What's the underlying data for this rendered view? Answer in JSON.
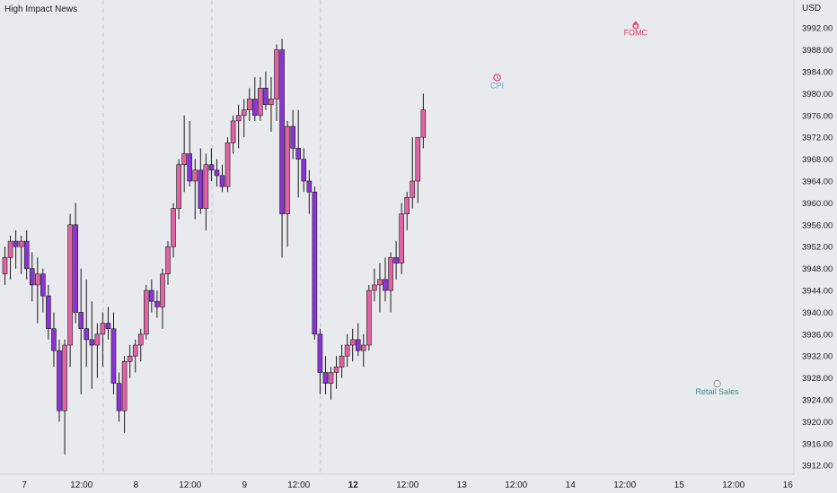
{
  "header": {
    "title": "High Impact News",
    "currency": "USD"
  },
  "colors": {
    "bg": "#e8eaed",
    "up": "#e263a5",
    "down": "#8a33d6",
    "wick": "#1a1a1a",
    "grid": "#c5c7cc"
  },
  "chart_data": {
    "type": "candlestick",
    "ylim": [
      3910,
      3996
    ],
    "y_ticks": [
      "3992.00",
      "3988.00",
      "3984.00",
      "3980.00",
      "3976.00",
      "3972.00",
      "3968.00",
      "3964.00",
      "3960.00",
      "3956.00",
      "3952.00",
      "3948.00",
      "3944.00",
      "3940.00",
      "3936.00",
      "3932.00",
      "3928.00",
      "3924.00",
      "3920.00",
      "3916.00",
      "3912.00"
    ],
    "x_labels": [
      {
        "slot": 4,
        "text": "7",
        "bold": false
      },
      {
        "slot": 14.5,
        "text": "12:00",
        "bold": false
      },
      {
        "slot": 24.5,
        "text": "8",
        "bold": false
      },
      {
        "slot": 34.5,
        "text": "12:00",
        "bold": false
      },
      {
        "slot": 44.5,
        "text": "9",
        "bold": false
      },
      {
        "slot": 54.5,
        "text": "12:00",
        "bold": false
      },
      {
        "slot": 64.5,
        "text": "12",
        "bold": true
      },
      {
        "slot": 74.5,
        "text": "12:00",
        "bold": false
      },
      {
        "slot": 84.5,
        "text": "13",
        "bold": false
      },
      {
        "slot": 94.5,
        "text": "12:00",
        "bold": false
      },
      {
        "slot": 104.5,
        "text": "14",
        "bold": false
      },
      {
        "slot": 114.5,
        "text": "12:00",
        "bold": false
      },
      {
        "slot": 124.5,
        "text": "15",
        "bold": false
      },
      {
        "slot": 134.5,
        "text": "12:00",
        "bold": false
      },
      {
        "slot": 144.5,
        "text": "16",
        "bold": false
      }
    ],
    "session_breaks": [
      18.5,
      38.5,
      58.5
    ],
    "candles": [
      [
        3947,
        3952,
        3945,
        3950
      ],
      [
        3950,
        3954,
        3946,
        3953
      ],
      [
        3953,
        3955,
        3948,
        3952
      ],
      [
        3952,
        3954,
        3947,
        3953
      ],
      [
        3953,
        3955,
        3946,
        3948
      ],
      [
        3948,
        3951,
        3942,
        3945
      ],
      [
        3945,
        3950,
        3938,
        3947
      ],
      [
        3947,
        3948,
        3940,
        3943
      ],
      [
        3943,
        3945,
        3935,
        3937
      ],
      [
        3937,
        3940,
        3930,
        3933
      ],
      [
        3933,
        3935,
        3920,
        3922
      ],
      [
        3922,
        3935,
        3914,
        3934
      ],
      [
        3934,
        3958,
        3930,
        3956
      ],
      [
        3956,
        3960,
        3938,
        3940
      ],
      [
        3940,
        3948,
        3925,
        3937
      ],
      [
        3937,
        3946,
        3930,
        3935
      ],
      [
        3935,
        3942,
        3926,
        3934
      ],
      [
        3934,
        3938,
        3928,
        3936
      ],
      [
        3936,
        3940,
        3930,
        3938
      ],
      [
        3938,
        3941,
        3935,
        3937
      ],
      [
        3937,
        3940,
        3925,
        3927
      ],
      [
        3927,
        3929,
        3920,
        3922
      ],
      [
        3922,
        3932,
        3918,
        3931
      ],
      [
        3931,
        3934,
        3928,
        3932
      ],
      [
        3932,
        3935,
        3929,
        3934
      ],
      [
        3934,
        3937,
        3931,
        3936
      ],
      [
        3936,
        3945,
        3935,
        3944
      ],
      [
        3944,
        3946,
        3940,
        3942
      ],
      [
        3942,
        3944,
        3939,
        3941
      ],
      [
        3941,
        3948,
        3937,
        3947
      ],
      [
        3947,
        3953,
        3945,
        3952
      ],
      [
        3952,
        3960,
        3950,
        3959
      ],
      [
        3959,
        3968,
        3957,
        3967
      ],
      [
        3967,
        3976,
        3962,
        3969
      ],
      [
        3969,
        3975,
        3963,
        3964
      ],
      [
        3964,
        3968,
        3957,
        3966
      ],
      [
        3966,
        3970,
        3958,
        3959
      ],
      [
        3959,
        3969,
        3955,
        3967
      ],
      [
        3967,
        3970,
        3964,
        3966
      ],
      [
        3966,
        3968,
        3963,
        3965
      ],
      [
        3965,
        3967,
        3962,
        3963
      ],
      [
        3963,
        3972,
        3962,
        3971
      ],
      [
        3971,
        3976,
        3969,
        3975
      ],
      [
        3975,
        3978,
        3970,
        3976
      ],
      [
        3976,
        3979,
        3972,
        3977
      ],
      [
        3977,
        3981,
        3975,
        3979
      ],
      [
        3979,
        3983,
        3975,
        3976
      ],
      [
        3976,
        3983,
        3975,
        3981
      ],
      [
        3981,
        3984,
        3977,
        3978
      ],
      [
        3978,
        3983,
        3973,
        3979
      ],
      [
        3979,
        3989,
        3975,
        3988
      ],
      [
        3988,
        3990,
        3950,
        3958
      ],
      [
        3958,
        3975,
        3952,
        3974
      ],
      [
        3974,
        3977,
        3968,
        3970
      ],
      [
        3970,
        3977,
        3961,
        3968
      ],
      [
        3968,
        3970,
        3962,
        3964
      ],
      [
        3964,
        3966,
        3958,
        3962
      ],
      [
        3962,
        3963,
        3935,
        3936
      ],
      [
        3936,
        3937,
        3925,
        3929
      ],
      [
        3929,
        3932,
        3925,
        3927
      ],
      [
        3927,
        3930,
        3924,
        3929
      ],
      [
        3929,
        3932,
        3926,
        3930
      ],
      [
        3930,
        3934,
        3928,
        3932
      ],
      [
        3932,
        3936,
        3930,
        3934
      ],
      [
        3934,
        3937,
        3931,
        3935
      ],
      [
        3935,
        3938,
        3932,
        3933
      ],
      [
        3933,
        3936,
        3930,
        3934
      ],
      [
        3934,
        3945,
        3933,
        3944
      ],
      [
        3944,
        3948,
        3942,
        3945
      ],
      [
        3945,
        3949,
        3940,
        3946
      ],
      [
        3946,
        3950,
        3942,
        3944
      ],
      [
        3944,
        3951,
        3940,
        3950
      ],
      [
        3950,
        3953,
        3946,
        3949
      ],
      [
        3949,
        3960,
        3947,
        3958
      ],
      [
        3958,
        3962,
        3955,
        3961
      ],
      [
        3961,
        3972,
        3959,
        3964
      ],
      [
        3964,
        3972,
        3960,
        3972
      ],
      [
        3972,
        3980,
        3970,
        3977
      ]
    ],
    "events": [
      {
        "label": "FOMC",
        "slot": 116.5,
        "price": 3992.3,
        "icon": "flame-icon",
        "color": "#d9366b"
      },
      {
        "label": "CPI",
        "slot": 91,
        "price": 3982.6,
        "icon": "alarm-clock-icon",
        "color": "#6a9fcc"
      },
      {
        "label": "Retail Sales",
        "slot": 131.5,
        "price": 3926.6,
        "icon": "globe-icon",
        "color": "#3f8a88"
      }
    ]
  }
}
